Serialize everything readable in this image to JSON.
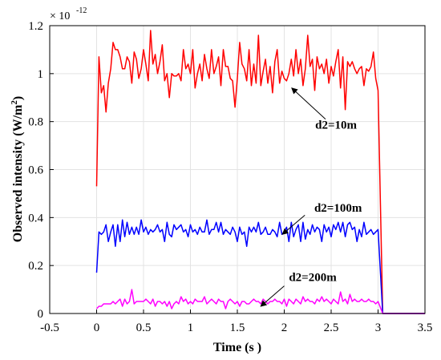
{
  "chart_data": {
    "type": "line",
    "title": "",
    "xlabel": "Time (s )",
    "ylabel_main": "Observed intensity (W/m",
    "ylabel_sup": "2",
    "ylabel_close": ")",
    "y_scale_prefix": "× 10",
    "y_scale_exp": "-12",
    "xlim": [
      -0.5,
      3.5
    ],
    "ylim": [
      0,
      1.2
    ],
    "xticks": [
      "-0.5",
      "0",
      "0.5",
      "1",
      "1.5",
      "2",
      "2.5",
      "3",
      "3.5"
    ],
    "yticks": [
      "0",
      "0.2",
      "0.4",
      "0.6",
      "0.8",
      "1",
      "1.2"
    ],
    "grid": true,
    "legend": "none",
    "series": [
      {
        "name": "d2=10m",
        "color": "#ff0000",
        "x": [
          0,
          0.025,
          0.05,
          0.075,
          0.1,
          0.125,
          0.15,
          0.175,
          0.2,
          0.225,
          0.25,
          0.275,
          0.3,
          0.325,
          0.35,
          0.375,
          0.4,
          0.425,
          0.45,
          0.475,
          0.5,
          0.525,
          0.55,
          0.575,
          0.6,
          0.625,
          0.65,
          0.675,
          0.7,
          0.725,
          0.75,
          0.775,
          0.8,
          0.825,
          0.85,
          0.875,
          0.9,
          0.925,
          0.95,
          0.975,
          1.0,
          1.025,
          1.05,
          1.075,
          1.1,
          1.125,
          1.15,
          1.175,
          1.2,
          1.225,
          1.25,
          1.275,
          1.3,
          1.325,
          1.35,
          1.375,
          1.4,
          1.425,
          1.45,
          1.475,
          1.5,
          1.525,
          1.55,
          1.575,
          1.6,
          1.625,
          1.65,
          1.675,
          1.7,
          1.725,
          1.75,
          1.775,
          1.8,
          1.825,
          1.85,
          1.875,
          1.9,
          1.925,
          1.95,
          1.975,
          2.0,
          2.025,
          2.05,
          2.075,
          2.1,
          2.125,
          2.15,
          2.175,
          2.2,
          2.225,
          2.25,
          2.275,
          2.3,
          2.325,
          2.35,
          2.375,
          2.4,
          2.425,
          2.45,
          2.475,
          2.5,
          2.525,
          2.55,
          2.575,
          2.6,
          2.625,
          2.65,
          2.675,
          2.7,
          2.725,
          2.75,
          2.775,
          2.8,
          2.825,
          2.85,
          2.875,
          2.9,
          2.925,
          2.95,
          2.975,
          3.0,
          3.05,
          3.5
        ],
        "y": [
          0.53,
          1.07,
          0.92,
          0.95,
          0.84,
          0.96,
          1.02,
          1.13,
          1.1,
          1.1,
          1.07,
          1.02,
          1.02,
          1.07,
          1.05,
          0.96,
          1.09,
          1.06,
          0.98,
          1.02,
          1.1,
          1.04,
          0.97,
          1.18,
          1.04,
          1.08,
          1.0,
          1.05,
          1.12,
          0.97,
          1.0,
          0.9,
          1.0,
          0.99,
          0.99,
          1.0,
          0.97,
          1.1,
          1.02,
          1.04,
          1.0,
          1.1,
          0.94,
          1.0,
          1.04,
          0.97,
          1.08,
          1.02,
          0.98,
          1.1,
          1.0,
          1.03,
          1.07,
          0.95,
          1.1,
          1.03,
          1.03,
          0.98,
          0.97,
          0.86,
          0.98,
          1.13,
          1.04,
          1.02,
          0.97,
          1.1,
          0.95,
          1.04,
          0.96,
          1.16,
          0.95,
          1.01,
          1.06,
          0.96,
          1.03,
          0.92,
          1.05,
          1.1,
          0.96,
          1.01,
          0.98,
          0.97,
          1.0,
          1.06,
          0.99,
          1.1,
          1.0,
          1.06,
          0.95,
          1.02,
          1.16,
          1.03,
          1.06,
          0.93,
          1.07,
          1.02,
          1.04,
          1.0,
          1.06,
          0.96,
          1.03,
          0.99,
          1.05,
          1.1,
          0.94,
          1.07,
          0.85,
          1.05,
          1.03,
          1.05,
          1.02,
          1.0,
          1.02,
          1.03,
          0.95,
          1.02,
          1.01,
          1.03,
          1.09,
          0.98,
          0.93,
          0.0,
          0.0
        ]
      },
      {
        "name": "d2=100m",
        "color": "#0000ff",
        "x": [
          0,
          0.025,
          0.05,
          0.075,
          0.1,
          0.125,
          0.15,
          0.175,
          0.2,
          0.225,
          0.25,
          0.275,
          0.3,
          0.325,
          0.35,
          0.375,
          0.4,
          0.425,
          0.45,
          0.475,
          0.5,
          0.525,
          0.55,
          0.575,
          0.6,
          0.625,
          0.65,
          0.675,
          0.7,
          0.725,
          0.75,
          0.775,
          0.8,
          0.825,
          0.85,
          0.875,
          0.9,
          0.925,
          0.95,
          0.975,
          1.0,
          1.025,
          1.05,
          1.075,
          1.1,
          1.125,
          1.15,
          1.175,
          1.2,
          1.225,
          1.25,
          1.275,
          1.3,
          1.325,
          1.35,
          1.375,
          1.4,
          1.425,
          1.45,
          1.475,
          1.5,
          1.525,
          1.55,
          1.575,
          1.6,
          1.625,
          1.65,
          1.675,
          1.7,
          1.725,
          1.75,
          1.775,
          1.8,
          1.825,
          1.85,
          1.875,
          1.9,
          1.925,
          1.95,
          1.975,
          2.0,
          2.025,
          2.05,
          2.075,
          2.1,
          2.125,
          2.15,
          2.175,
          2.2,
          2.225,
          2.25,
          2.275,
          2.3,
          2.325,
          2.35,
          2.375,
          2.4,
          2.425,
          2.45,
          2.475,
          2.5,
          2.525,
          2.55,
          2.575,
          2.6,
          2.625,
          2.65,
          2.675,
          2.7,
          2.725,
          2.75,
          2.775,
          2.8,
          2.825,
          2.85,
          2.875,
          2.9,
          2.925,
          2.95,
          2.975,
          3.0,
          3.05,
          3.5
        ],
        "y": [
          0.17,
          0.34,
          0.33,
          0.34,
          0.37,
          0.3,
          0.34,
          0.37,
          0.28,
          0.37,
          0.3,
          0.39,
          0.32,
          0.38,
          0.33,
          0.36,
          0.33,
          0.36,
          0.33,
          0.39,
          0.34,
          0.36,
          0.33,
          0.35,
          0.34,
          0.35,
          0.37,
          0.34,
          0.35,
          0.3,
          0.38,
          0.33,
          0.32,
          0.37,
          0.35,
          0.36,
          0.37,
          0.34,
          0.35,
          0.32,
          0.37,
          0.34,
          0.35,
          0.33,
          0.36,
          0.34,
          0.34,
          0.39,
          0.33,
          0.35,
          0.35,
          0.38,
          0.34,
          0.38,
          0.33,
          0.35,
          0.34,
          0.33,
          0.36,
          0.34,
          0.3,
          0.36,
          0.33,
          0.34,
          0.28,
          0.36,
          0.34,
          0.36,
          0.34,
          0.38,
          0.33,
          0.34,
          0.36,
          0.33,
          0.33,
          0.35,
          0.34,
          0.32,
          0.38,
          0.33,
          0.34,
          0.36,
          0.3,
          0.38,
          0.32,
          0.35,
          0.37,
          0.3,
          0.38,
          0.31,
          0.35,
          0.33,
          0.37,
          0.34,
          0.36,
          0.35,
          0.3,
          0.37,
          0.34,
          0.36,
          0.32,
          0.37,
          0.35,
          0.38,
          0.34,
          0.38,
          0.32,
          0.37,
          0.38,
          0.35,
          0.36,
          0.3,
          0.35,
          0.32,
          0.38,
          0.33,
          0.34,
          0.35,
          0.33,
          0.34,
          0.35,
          0.0,
          0.0
        ]
      },
      {
        "name": "d2=200m",
        "color": "#ff00ff",
        "x": [
          0,
          0.025,
          0.05,
          0.075,
          0.1,
          0.125,
          0.15,
          0.175,
          0.2,
          0.225,
          0.25,
          0.275,
          0.3,
          0.325,
          0.35,
          0.375,
          0.4,
          0.425,
          0.45,
          0.475,
          0.5,
          0.525,
          0.55,
          0.575,
          0.6,
          0.625,
          0.65,
          0.675,
          0.7,
          0.725,
          0.75,
          0.775,
          0.8,
          0.825,
          0.85,
          0.875,
          0.9,
          0.925,
          0.95,
          0.975,
          1.0,
          1.025,
          1.05,
          1.075,
          1.1,
          1.125,
          1.15,
          1.175,
          1.2,
          1.225,
          1.25,
          1.275,
          1.3,
          1.325,
          1.35,
          1.375,
          1.4,
          1.425,
          1.45,
          1.475,
          1.5,
          1.525,
          1.55,
          1.575,
          1.6,
          1.625,
          1.65,
          1.675,
          1.7,
          1.725,
          1.75,
          1.775,
          1.8,
          1.825,
          1.85,
          1.875,
          1.9,
          1.925,
          1.95,
          1.975,
          2.0,
          2.025,
          2.05,
          2.075,
          2.1,
          2.125,
          2.15,
          2.175,
          2.2,
          2.225,
          2.25,
          2.275,
          2.3,
          2.325,
          2.35,
          2.375,
          2.4,
          2.425,
          2.45,
          2.475,
          2.5,
          2.525,
          2.55,
          2.575,
          2.6,
          2.625,
          2.65,
          2.675,
          2.7,
          2.725,
          2.75,
          2.775,
          2.8,
          2.825,
          2.85,
          2.875,
          2.9,
          2.925,
          2.95,
          2.975,
          3.0,
          3.05,
          3.5
        ],
        "y": [
          0.02,
          0.03,
          0.03,
          0.04,
          0.04,
          0.04,
          0.04,
          0.05,
          0.04,
          0.05,
          0.06,
          0.03,
          0.06,
          0.04,
          0.05,
          0.1,
          0.04,
          0.05,
          0.05,
          0.05,
          0.05,
          0.06,
          0.05,
          0.04,
          0.06,
          0.03,
          0.05,
          0.05,
          0.04,
          0.05,
          0.03,
          0.05,
          0.02,
          0.04,
          0.05,
          0.04,
          0.07,
          0.05,
          0.06,
          0.04,
          0.05,
          0.04,
          0.06,
          0.05,
          0.05,
          0.05,
          0.07,
          0.04,
          0.05,
          0.06,
          0.05,
          0.04,
          0.06,
          0.05,
          0.05,
          0.02,
          0.05,
          0.06,
          0.05,
          0.04,
          0.05,
          0.03,
          0.05,
          0.05,
          0.04,
          0.04,
          0.05,
          0.06,
          0.05,
          0.05,
          0.04,
          0.06,
          0.05,
          0.04,
          0.05,
          0.05,
          0.06,
          0.05,
          0.05,
          0.04,
          0.06,
          0.03,
          0.06,
          0.05,
          0.04,
          0.06,
          0.05,
          0.04,
          0.07,
          0.05,
          0.06,
          0.05,
          0.05,
          0.04,
          0.06,
          0.05,
          0.07,
          0.05,
          0.06,
          0.05,
          0.04,
          0.06,
          0.05,
          0.04,
          0.09,
          0.05,
          0.06,
          0.04,
          0.08,
          0.05,
          0.06,
          0.05,
          0.05,
          0.06,
          0.05,
          0.05,
          0.06,
          0.05,
          0.05,
          0.04,
          0.05,
          0.0,
          0.0
        ]
      }
    ],
    "annotations": [
      {
        "text": "d2=10m",
        "color": "#000000",
        "text_xy": [
          2.33,
          0.77
        ],
        "arrow_from": [
          2.44,
          0.81
        ],
        "arrow_to": [
          2.08,
          0.94
        ]
      },
      {
        "text": "d2=100m",
        "color": "#000000",
        "text_xy": [
          2.32,
          0.425
        ],
        "arrow_from": [
          2.22,
          0.41
        ],
        "arrow_to": [
          1.98,
          0.33
        ]
      },
      {
        "text": "d2=200m",
        "color": "#000000",
        "text_xy": [
          2.05,
          0.135
        ],
        "arrow_from": [
          2.0,
          0.115
        ],
        "arrow_to": [
          1.75,
          0.03
        ]
      }
    ]
  }
}
